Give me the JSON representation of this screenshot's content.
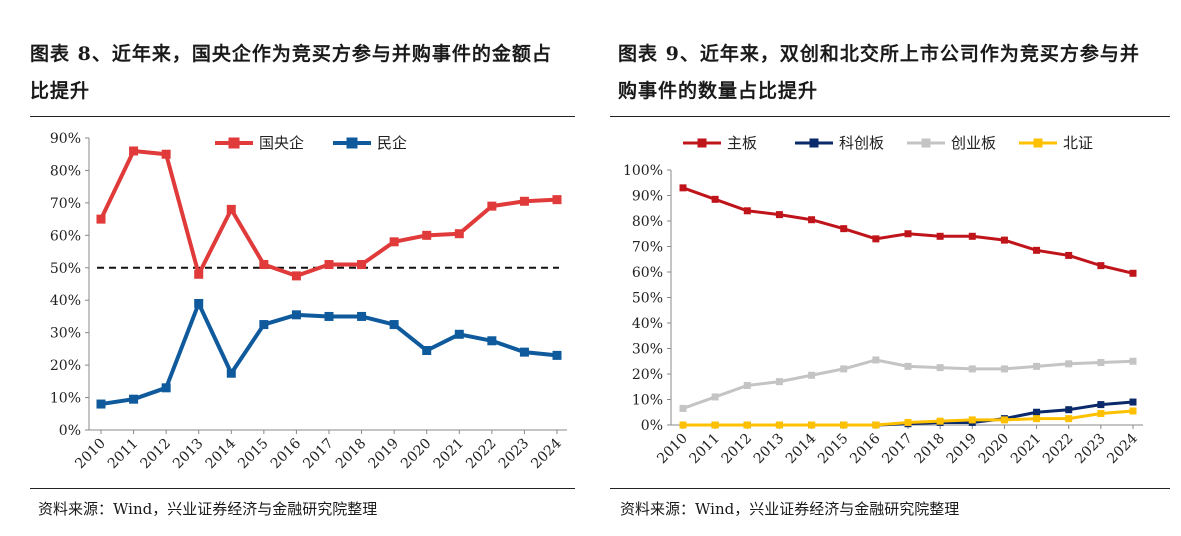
{
  "panels": {
    "left": {
      "title": "图表 8、近年来，国央企作为竞买方参与并购事件的金额占比提升",
      "source": "资料来源：Wind，兴业证券经济与金融研究院整理"
    },
    "right": {
      "title": "图表 9、近年来，双创和北交所上市公司作为竞买方参与并购事件的数量占比提升",
      "source": "资料来源：Wind，兴业证券经济与金融研究院整理"
    }
  },
  "colors": {
    "red": "#E03a3a",
    "darkred": "#C0141B",
    "blue": "#0E5A9C",
    "navy": "#0B2A6B",
    "gray": "#C4C4C4",
    "yellow": "#FFC000"
  },
  "chart_data": [
    {
      "type": "line",
      "title": "近年来，国央企作为竞买方参与并购事件的金额占比提升",
      "categories": [
        "2010",
        "2011",
        "2012",
        "2013",
        "2014",
        "2015",
        "2016",
        "2017",
        "2018",
        "2019",
        "2020",
        "2021",
        "2022",
        "2023",
        "2024"
      ],
      "series": [
        {
          "name": "国央企",
          "color": "#E03a3a",
          "values": [
            65,
            86,
            85,
            48,
            68,
            51,
            47.5,
            51,
            51,
            58,
            60,
            60.5,
            69,
            70.5,
            71
          ]
        },
        {
          "name": "民企",
          "color": "#0E5A9C",
          "values": [
            8,
            9.5,
            13,
            39,
            17.5,
            32.5,
            35.5,
            35,
            35,
            32.5,
            24.5,
            29.5,
            27.5,
            24,
            23
          ]
        }
      ],
      "reference_line": {
        "value": 50,
        "style": "dashed"
      },
      "ylim": [
        0,
        90
      ],
      "yticks": [
        0,
        10,
        20,
        30,
        40,
        50,
        60,
        70,
        80,
        90
      ],
      "ytick_labels": [
        "0%",
        "10%",
        "20%",
        "30%",
        "40%",
        "50%",
        "60%",
        "70%",
        "80%",
        "90%"
      ],
      "legend": "top",
      "grid": false
    },
    {
      "type": "line",
      "title": "近年来，双创和北交所上市公司作为竞买方参与并购事件的数量占比提升",
      "categories": [
        "2010",
        "2011",
        "2012",
        "2013",
        "2014",
        "2015",
        "2016",
        "2017",
        "2018",
        "2019",
        "2020",
        "2021",
        "2022",
        "2023",
        "2024"
      ],
      "series": [
        {
          "name": "主板",
          "color": "#C0141B",
          "values": [
            93,
            88.5,
            84,
            82.5,
            80.5,
            77,
            73,
            75,
            74,
            74,
            72.5,
            68.5,
            66.5,
            62.5,
            59.5
          ]
        },
        {
          "name": "科创板",
          "color": "#0B2A6B",
          "values": [
            0,
            0,
            0,
            0,
            0,
            0,
            0,
            0.5,
            1,
            1,
            2.5,
            5,
            6,
            8,
            9
          ]
        },
        {
          "name": "创业板",
          "color": "#C4C4C4",
          "values": [
            6.5,
            11,
            15.5,
            17,
            19.5,
            22,
            25.5,
            23,
            22.5,
            22,
            22,
            23,
            24,
            24.5,
            25
          ]
        },
        {
          "name": "北证",
          "color": "#FFC000",
          "values": [
            0,
            0,
            0,
            0,
            0,
            0,
            0,
            1,
            1.5,
            2,
            2,
            2.5,
            2.5,
            4.5,
            5.5
          ]
        }
      ],
      "ylim": [
        0,
        100
      ],
      "yticks": [
        0,
        10,
        20,
        30,
        40,
        50,
        60,
        70,
        80,
        90,
        100
      ],
      "ytick_labels": [
        "0%",
        "10%",
        "20%",
        "30%",
        "40%",
        "50%",
        "60%",
        "70%",
        "80%",
        "90%",
        "100%"
      ],
      "legend": "top",
      "grid": false
    }
  ]
}
